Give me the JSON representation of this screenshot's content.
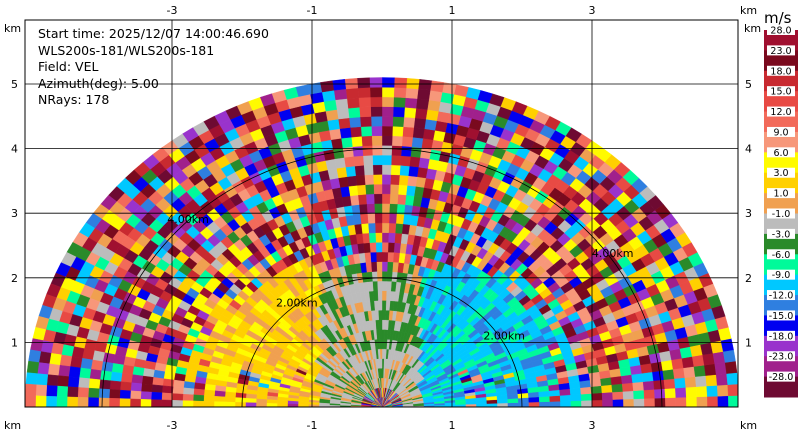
{
  "info": {
    "start_time": "Start time: 2025/12/07 14:00:46.690",
    "instrument": "WLS200s-181/WLS200s-181",
    "field": "Field: VEL",
    "azimuth": "Azimuth(deg): 5.00",
    "nrays": "NRays: 178"
  },
  "chart_data": {
    "type": "heatmap",
    "subtype": "RHI radar sector (velocity field)",
    "x_unit": "km",
    "y_unit": "km",
    "x_ticks": [
      "-3",
      "-1",
      "1",
      "3"
    ],
    "y_ticks": [
      "1",
      "2",
      "3",
      "4",
      "5"
    ],
    "xlim": [
      -5.05,
      5.05
    ],
    "ylim": [
      0,
      5.32
    ],
    "max_range_km": 5.1,
    "grid": true,
    "range_rings": [
      {
        "radius_km": 2,
        "label": "2.00km"
      },
      {
        "radius_km": 4,
        "label": "4.00km"
      }
    ],
    "colorbar": {
      "units": "m/s",
      "ticks": [
        "28.0",
        "23.0",
        "18.0",
        "15.0",
        "12.0",
        "9.0",
        "6.0",
        "3.0",
        "1.0",
        "-1.0",
        "-3.0",
        "-6.0",
        "-9.0",
        "-12.0",
        "-15.0",
        "-18.0",
        "-23.0",
        "-28.0"
      ],
      "colors": [
        "#a01030",
        "#7a0a1e",
        "#c82a30",
        "#e84a44",
        "#f26a5a",
        "#f7977a",
        "#fffb00",
        "#ffd000",
        "#f0a050",
        "#bcbcbc",
        "#2a8a2a",
        "#00fa9a",
        "#00c8ff",
        "#2f7fe0",
        "#0000f0",
        "#9933cc",
        "#a0208c",
        "#6e0a32"
      ]
    },
    "regions_description": [
      {
        "range_km": [
          0,
          0.35
        ],
        "elevation": "all",
        "field": "noisy speckle"
      },
      {
        "range_km": [
          0.35,
          2.9
        ],
        "elevation": "low, x<0",
        "field": "yellow/orange (≈3–9 m/s)"
      },
      {
        "range_km": [
          0.35,
          2.9
        ],
        "elevation": "low, x near 0",
        "field": "gray/green (≈-3–1 m/s)"
      },
      {
        "range_km": [
          0.35,
          2.9
        ],
        "elevation": "low, x>0",
        "field": "blue/cyan (≈-9–-12 m/s)"
      },
      {
        "range_km": [
          2.9,
          5.1
        ],
        "elevation": "all",
        "field": "noisy speckle"
      }
    ]
  }
}
